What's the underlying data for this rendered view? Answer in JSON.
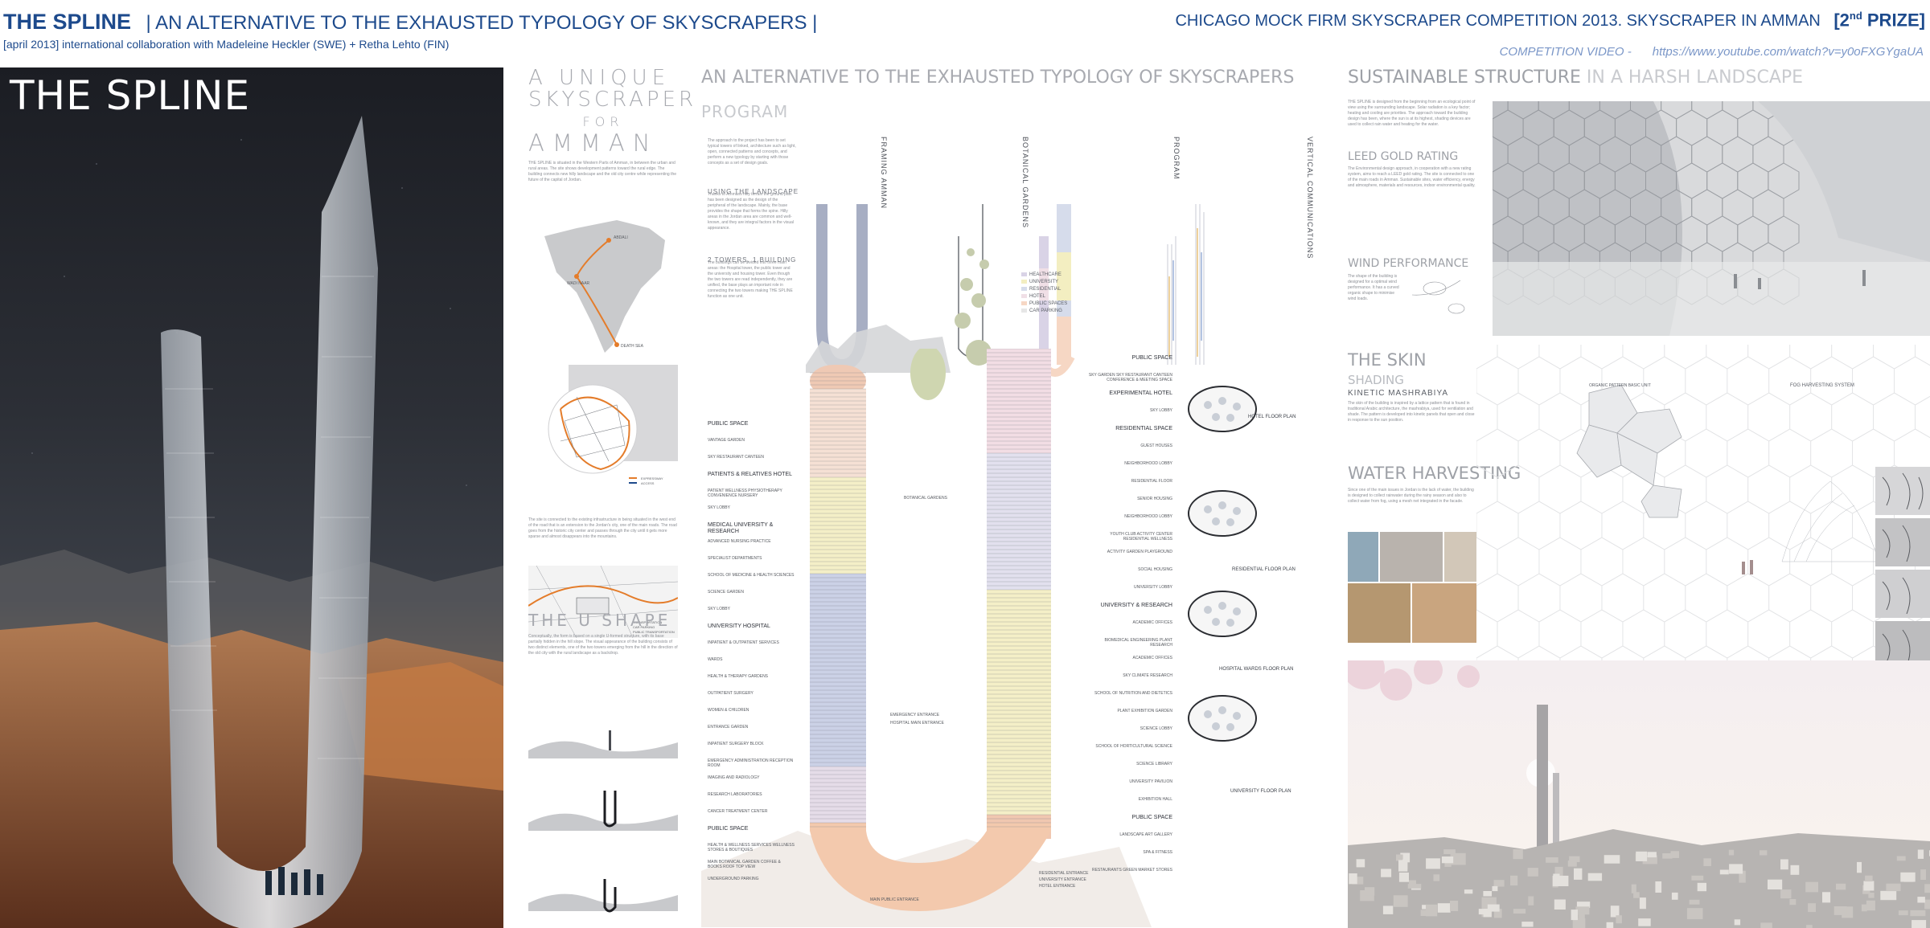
{
  "header": {
    "title": "THE SPLINE",
    "subtitle": "| AN ALTERNATIVE TO THE EXHAUSTED TYPOLOGY OF SKYSCRAPERS |",
    "collab": "[april 2013] international collaboration with Madeleine Heckler (SWE) + Retha Lehto (FIN)",
    "competition": "CHICAGO MOCK FIRM SKYSCRAPER COMPETITION 2013. SKYSCRAPER IN AMMAN",
    "prize_open": "[2",
    "prize_sup": "nd",
    "prize_close": " PRIZE]",
    "video_label": "COMPETITION VIDEO -",
    "video_url": "https://www.youtube.com/watch?v=y0oFXGYgaUA"
  },
  "hero": {
    "title": "THE SPLINE"
  },
  "panel2": {
    "heading_line1": "A UNIQUE",
    "heading_line2": "SKYSCRAPER",
    "heading_line3": "FOR",
    "heading_line4": "AMMAN",
    "intro": "THE SPLINE is situated in the Western Parts of Amman, in between the urban and rural areas. The site shows development patterns toward the rural edge. The building connects new hilly landscape and the old city centre while representing the future of the capital of Jordan.",
    "map_labels": [
      "ABDALI",
      "WADI NAAR",
      "DEATH SEA"
    ],
    "map_legend": [
      "EXPRESSWAY",
      "ACCESS"
    ],
    "middle_text": "The site is connected to the existing infrastructure in being situated in the west end of the road that is an extension to the Jordan's city, one of the main roads. The road goes from the historic city center and passes through the city until it gets more sparse and almost disappears into the mountains.",
    "transport_legend": [
      "TRANSPORTATION",
      "CAR PARKING",
      "PUBLIC TRANSPORTATION"
    ],
    "ushape_heading": "THE U SHAPE",
    "ushape_text": "Conceptually, the form is based on a single U-formed structure, with its base partially hidden in the hill slope. The visual appearance of the building consists of two distinct elements, one of the two towers emerging from the hill in the direction of the old city with the rural landscape as a backdrop."
  },
  "panel3": {
    "heading": "AN ALTERNATIVE TO THE EXHAUSTED TYPOLOGY OF SKYSCRAPERS",
    "program_heading": "PROGRAM",
    "program_text": "The approach to the project has been to set typical towers of linked, architecture such as light, open, connected patterns and concepts, and perform a new typology by starting with those concepts as a set of design goals.",
    "landscape_heading": "USING THE LANDSCAPE",
    "landscape_text": "Thanks to Ammans hilly terrain the ground plan has been designed as the design of the peripheral of the landscape. Mainly, the base provides the shape that forms the spine. Hilly areas in the Jordan area are common and well-known, and they are integral factors in the visual appearance.",
    "towers_heading": "2 TOWERS, 1 BUILDING",
    "towers_text": "The buildings can be divided into three main areas: the Hospital tower, the public tower and the university and housing tower. Even though the two towers are read independently, they are unified, the base plays an important role in connecting the two towers making THE SPLINE function as one unit.",
    "diagram_titles": [
      "FRAMING AMMAN",
      "BOTANICAL GARDENS",
      "PROGRAM",
      "VERTICAL COMMUNICATIONS"
    ],
    "legend": [
      {
        "label": "HEALTHCARE",
        "color": "#d9d3e6"
      },
      {
        "label": "UNIVERSITY",
        "color": "#f3eec1"
      },
      {
        "label": "RESIDENTIAL",
        "color": "#d6dceb"
      },
      {
        "label": "HOTEL",
        "color": "#f0dfe6"
      },
      {
        "label": "PUBLIC SPACES",
        "color": "#f6d7c4"
      },
      {
        "label": "CAR PARKING",
        "color": "#e6e6e6"
      }
    ],
    "section_labels_left": [
      "PUBLIC SPACE",
      "VANTAGE GARDEN",
      "SKY RESTAURANT CANTEEN",
      "PATIENTS & RELATIVES HOTEL",
      "PATIENT WELLNESS PHYSIOTHERAPY CONVENIENCE NURSERY",
      "SKY LOBBY",
      "MEDICAL UNIVERSITY & RESEARCH",
      "ADVANCED NURSING PRACTICE",
      "SPECIALIST DEPARTMENTS",
      "SCHOOL OF MEDICINE & HEALTH SCIENCES",
      "SCIENCE GARDEN",
      "SKY LOBBY",
      "UNIVERSITY HOSPITAL",
      "INPATIENT & OUTPATIENT SERVICES",
      "WARDS",
      "HEALTH & THERAPY GARDENS",
      "OUTPATIENT SURGERY",
      "WOMEN & CHILDREN",
      "ENTRANCE GARDEN",
      "INPATIENT SURGERY BLOCK",
      "EMERGENCY ADMINISTRATION RECEPTION ROOM",
      "IMAGING AND RADIOLOGY",
      "RESEARCH LABORATORIES",
      "CANCER TREATMENT CENTER",
      "PUBLIC SPACE",
      "HEALTH & WELLNESS SERVICES WELLNESS STORES & BOUTIQUES",
      "MAIN BOTANICAL GARDEN COFFEE & BOOKS ROOF TOP VIEW",
      "UNDERGROUND PARKING"
    ],
    "section_labels_right": [
      "PUBLIC SPACE",
      "SKY GARDEN SKY RESTAURANT CANTEEN CONFERENCE & MEETING SPACE",
      "EXPERIMENTAL HOTEL",
      "SKY LOBBY",
      "RESIDENTIAL SPACE",
      "GUEST HOUSES",
      "NEIGHBORHOOD LOBBY",
      "RESIDENTIAL FLOOR",
      "SENIOR HOUSING",
      "NEIGHBORHOOD LOBBY",
      "YOUTH CLUB ACTIVITY CENTER RESIDENTIAL WELLNESS",
      "ACTIVITY GARDEN PLAYGROUND",
      "SOCIAL HOUSING",
      "UNIVERSITY LOBBY",
      "UNIVERSITY & RESEARCH",
      "ACADEMIC OFFICES",
      "BIOMEDICAL ENGINEERING PLANT RESEARCH",
      "ACADEMIC OFFICES",
      "SKY CLIMATE RESEARCH",
      "SCHOOL OF NUTRITION AND DIETETICS",
      "PLANT EXHIBITION GARDEN",
      "SCIENCE LOBBY",
      "SCHOOL OF HORTICULTURAL SCIENCE",
      "SCIENCE LIBRARY",
      "UNIVERSITY PAVILION",
      "EXHIBITION HALL",
      "PUBLIC SPACE",
      "LANDSCAPE ART GALLERY",
      "SPA & FITNESS",
      "RESTAURANTS GREEN MARKET STORES"
    ],
    "botanical_label": "BOTANICAL GARDENS",
    "entrance_labels": [
      "EMERGENCY ENTRANCE",
      "HOSPITAL MAIN ENTRANCE",
      "MAIN PUBLIC ENTRANCE",
      "RESIDENTIAL ENTRANCE",
      "UNIVERSITY ENTRANCE",
      "HOTEL ENTRANCE"
    ],
    "floor_plans": [
      "HOTEL FLOOR PLAN",
      "RESIDENTIAL FLOOR PLAN",
      "HOSPITAL WARDS FLOOR PLAN",
      "UNIVERSITY FLOOR PLAN"
    ]
  },
  "panel4": {
    "heading_a": "SUSTAINABLE STRUCTURE",
    "heading_b": " IN A HARSH LANDSCAPE",
    "intro": "THE SPLINE is designed from the beginning from an ecological point of view using the surrounding landscape. Solar radiation is a key factor; heating and cooling are priorities. The approach toward the building design has been, where the sun is at its highest, shading devices are used to collect rain water and heating for the water.",
    "leed_heading": "LEED GOLD RATING",
    "leed_text": "The Environmental design approach, in cooperation with a new rating system, aims to reach a LEED gold rating. The site is connected to one of the main roads in Amman. Sustainable sites, water efficiency, energy and atmosphere, materials and resources, indoor environmental quality.",
    "wind_heading": "WIND PERFORMANCE",
    "wind_text": "The shape of the building is designed for a optimal wind performance. It has a curved organic shape to minimise wind loads.",
    "skin_heading": "THE SKIN",
    "shading_heading": "SHADING",
    "kinetic": "KINETIC MASHRABIYA",
    "skin_text": "The skin of the building is inspired by a lattice pattern that is found in traditional Arabic architecture, the mashrabiya, used for ventilation and shade. The pattern is developed into kinetic panels that open and close in response to the sun position.",
    "water_heading": "WATER HARVESTING",
    "water_text": "Since one of the main issues in Jordan is the lack of water, the building is designed to collect rainwater during the rainy season and also to collect water from fog, using a mesh net integrated in the facade.",
    "pattern_label": "ORGANIC PATTERN BASIC UNIT",
    "fog_label": "FOG HARVESTING SYSTEM"
  }
}
